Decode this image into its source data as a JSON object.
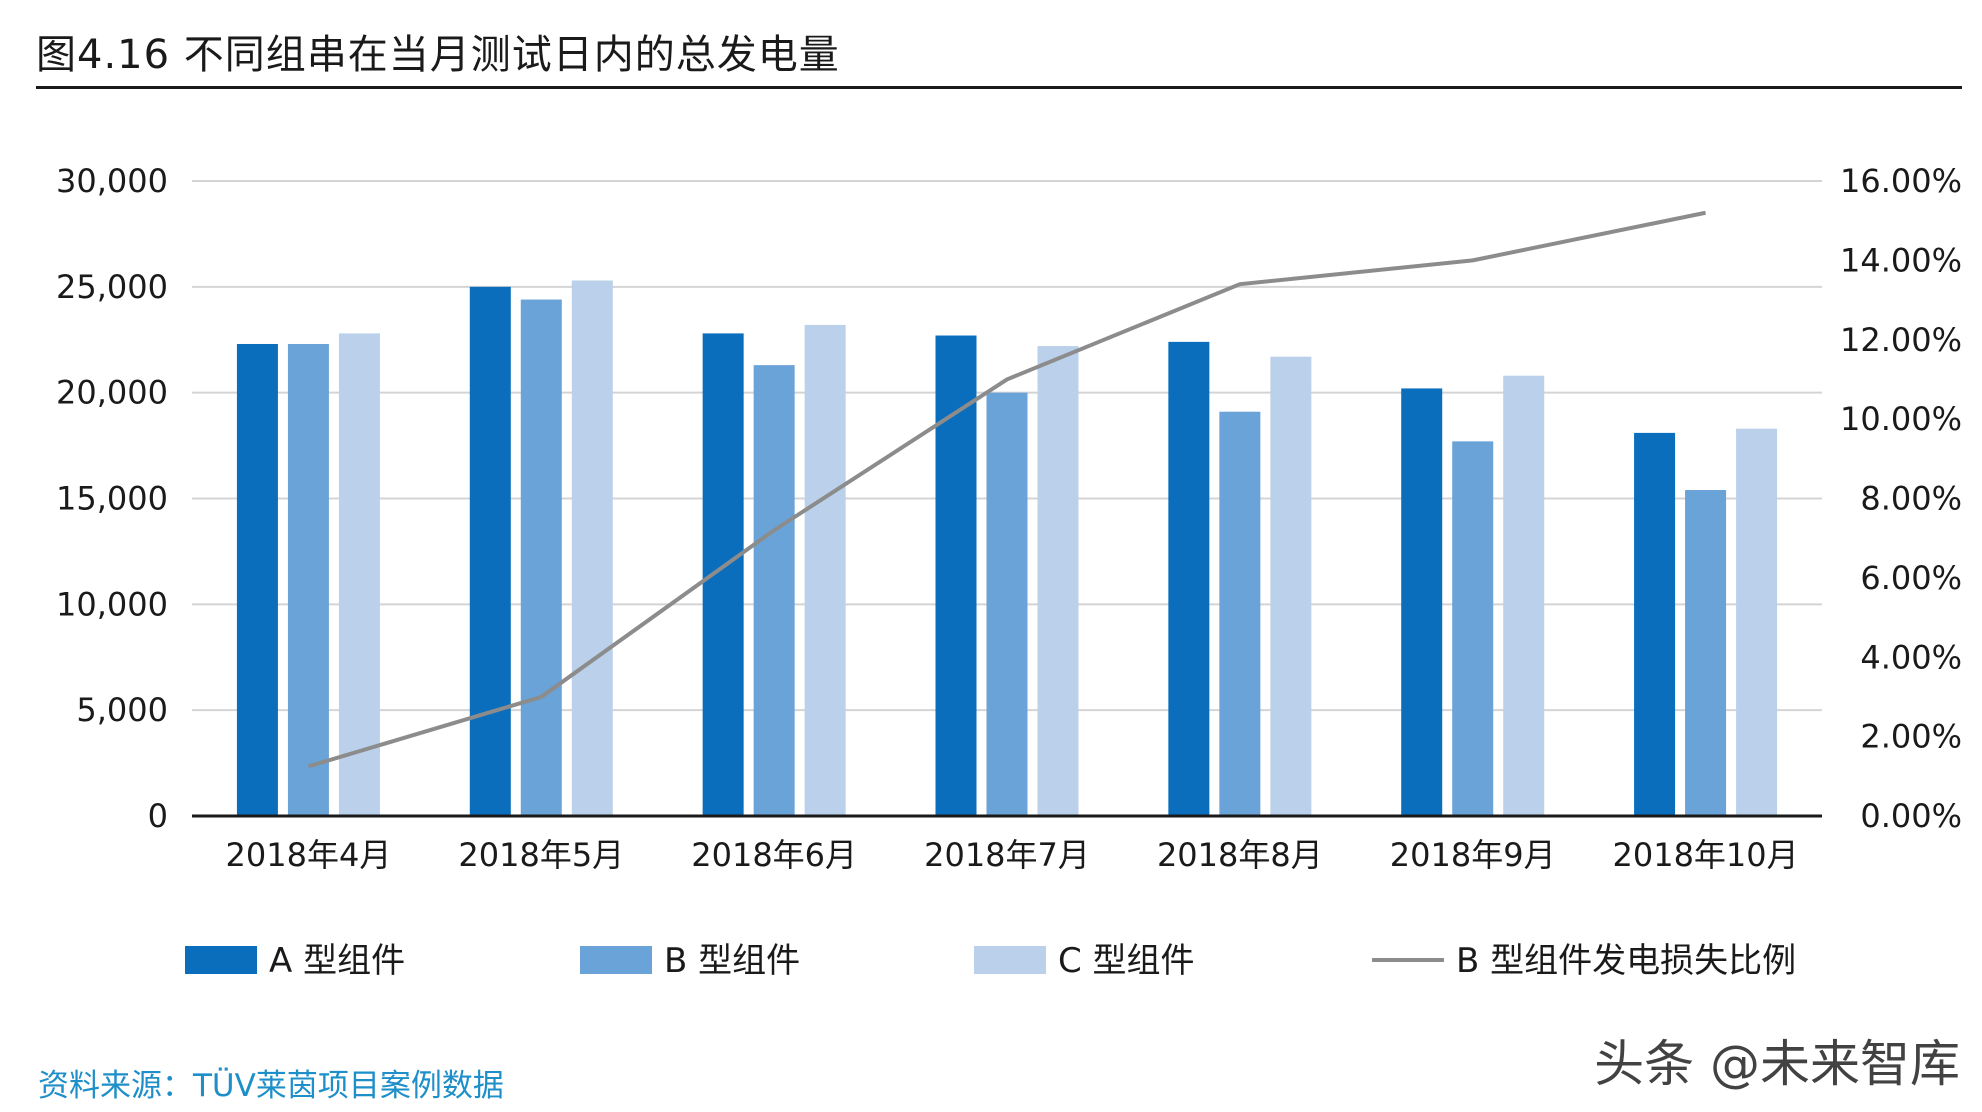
{
  "title": "图4.16 不同组串在当月测试日内的总发电量",
  "source": "资料来源：TÜV莱茵项目案例数据",
  "watermark": "头条 @未来智库",
  "chart_data": {
    "type": "bar",
    "categories": [
      "2018年4月",
      "2018年5月",
      "2018年6月",
      "2018年7月",
      "2018年8月",
      "2018年9月",
      "2018年10月"
    ],
    "series": [
      {
        "name": "A 型组件",
        "type": "bar",
        "axis": "left",
        "color": "#0a6ebd",
        "values": [
          22300,
          25000,
          22800,
          22700,
          22400,
          20200,
          18100
        ]
      },
      {
        "name": "B 型组件",
        "type": "bar",
        "axis": "left",
        "color": "#6aa3d8",
        "values": [
          22300,
          24400,
          21300,
          20000,
          19100,
          17700,
          15400
        ]
      },
      {
        "name": "C 型组件",
        "type": "bar",
        "axis": "left",
        "color": "#bbd0ea",
        "values": [
          22800,
          25300,
          23200,
          22200,
          21700,
          20800,
          18300
        ]
      },
      {
        "name": "B 型组件发电损失比例",
        "type": "line",
        "axis": "right",
        "color": "#8c8c8c",
        "values": [
          0.0125,
          0.03,
          0.072,
          0.11,
          0.134,
          0.14,
          0.152
        ]
      }
    ],
    "y_left": {
      "min": 0,
      "max": 30000,
      "ticks": [
        0,
        5000,
        10000,
        15000,
        20000,
        25000,
        30000
      ],
      "tick_labels": [
        "0",
        "5,000",
        "10,000",
        "15,000",
        "20,000",
        "25,000",
        "30,000"
      ]
    },
    "y_right": {
      "min": 0,
      "max": 0.16,
      "ticks": [
        0,
        0.02,
        0.04,
        0.06,
        0.08,
        0.1,
        0.12,
        0.14,
        0.16
      ],
      "tick_labels": [
        "0.00%",
        "2.00%",
        "4.00%",
        "6.00%",
        "8.00%",
        "10.00%",
        "12.00%",
        "14.00%",
        "16.00%"
      ]
    },
    "grid": "horizontal",
    "legend_position": "bottom",
    "axis_color": "#1a1a1a",
    "grid_color": "#d4d4d4"
  }
}
